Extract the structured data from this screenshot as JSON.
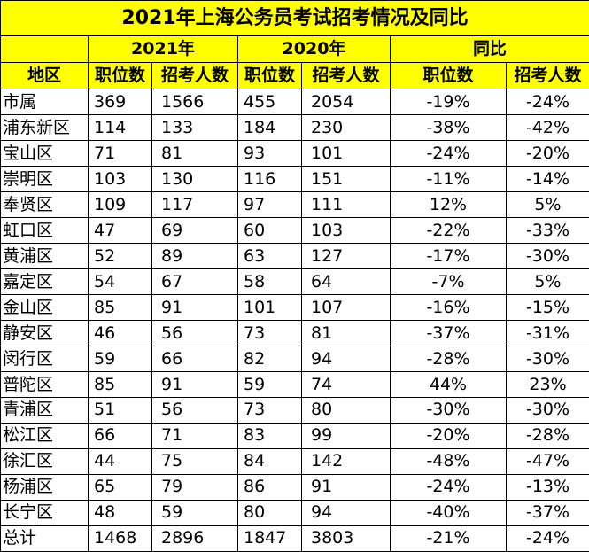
{
  "title": "2021年上海公务员考试招考情况及同比",
  "groups": [
    "2021年",
    "2020年",
    "同比"
  ],
  "headers": [
    "地区",
    "职位数",
    "招考人数",
    "职位数",
    "招考人数",
    "职位数",
    "招考人数"
  ],
  "rows": [
    [
      "市属",
      "369",
      "1566",
      "455",
      "2054",
      "-19%",
      "-24%"
    ],
    [
      "浦东新区",
      "114",
      "133",
      "184",
      "230",
      "-38%",
      "-42%"
    ],
    [
      "宝山区",
      "71",
      "81",
      "93",
      "101",
      "-24%",
      "-20%"
    ],
    [
      "崇明区",
      "103",
      "130",
      "116",
      "151",
      "-11%",
      "-14%"
    ],
    [
      "奉贤区",
      "109",
      "117",
      "97",
      "111",
      "12%",
      "5%"
    ],
    [
      "虹口区",
      "47",
      "69",
      "60",
      "103",
      "-22%",
      "-33%"
    ],
    [
      "黄浦区",
      "52",
      "89",
      "63",
      "127",
      "-17%",
      "-30%"
    ],
    [
      "嘉定区",
      "54",
      "67",
      "58",
      "64",
      "-7%",
      "5%"
    ],
    [
      "金山区",
      "85",
      "91",
      "101",
      "107",
      "-16%",
      "-15%"
    ],
    [
      "静安区",
      "46",
      "56",
      "73",
      "81",
      "-37%",
      "-31%"
    ],
    [
      "闵行区",
      "59",
      "66",
      "82",
      "94",
      "-28%",
      "-30%"
    ],
    [
      "普陀区",
      "85",
      "91",
      "59",
      "74",
      "44%",
      "23%"
    ],
    [
      "青浦区",
      "51",
      "56",
      "73",
      "80",
      "-30%",
      "-30%"
    ],
    [
      "松江区",
      "66",
      "71",
      "83",
      "99",
      "-20%",
      "-28%"
    ],
    [
      "徐汇区",
      "44",
      "75",
      "84",
      "142",
      "-48%",
      "-47%"
    ],
    [
      "杨浦区",
      "65",
      "79",
      "86",
      "91",
      "-24%",
      "-13%"
    ],
    [
      "长宁区",
      "48",
      "59",
      "80",
      "94",
      "-40%",
      "-37%"
    ],
    [
      "总计",
      "1468",
      "2896",
      "1847",
      "3803",
      "-21%",
      "-24%"
    ]
  ]
}
